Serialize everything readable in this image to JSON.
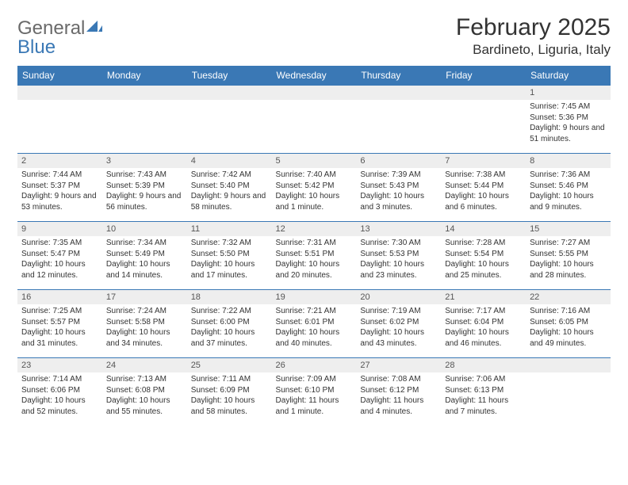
{
  "branding": {
    "word1": "General",
    "word2": "Blue",
    "word1_color": "#6a6a6a",
    "word2_color": "#3a78b5"
  },
  "title": "February 2025",
  "location": "Bardineto, Liguria, Italy",
  "colors": {
    "header_bg": "#3a78b5",
    "header_text": "#ffffff",
    "daynum_bg": "#eeeeee",
    "row_border": "#3a78b5",
    "body_text": "#333333"
  },
  "day_labels": [
    "Sunday",
    "Monday",
    "Tuesday",
    "Wednesday",
    "Thursday",
    "Friday",
    "Saturday"
  ],
  "weeks": [
    [
      {
        "n": "",
        "sr": "",
        "ss": "",
        "dl": ""
      },
      {
        "n": "",
        "sr": "",
        "ss": "",
        "dl": ""
      },
      {
        "n": "",
        "sr": "",
        "ss": "",
        "dl": ""
      },
      {
        "n": "",
        "sr": "",
        "ss": "",
        "dl": ""
      },
      {
        "n": "",
        "sr": "",
        "ss": "",
        "dl": ""
      },
      {
        "n": "",
        "sr": "",
        "ss": "",
        "dl": ""
      },
      {
        "n": "1",
        "sr": "Sunrise: 7:45 AM",
        "ss": "Sunset: 5:36 PM",
        "dl": "Daylight: 9 hours and 51 minutes."
      }
    ],
    [
      {
        "n": "2",
        "sr": "Sunrise: 7:44 AM",
        "ss": "Sunset: 5:37 PM",
        "dl": "Daylight: 9 hours and 53 minutes."
      },
      {
        "n": "3",
        "sr": "Sunrise: 7:43 AM",
        "ss": "Sunset: 5:39 PM",
        "dl": "Daylight: 9 hours and 56 minutes."
      },
      {
        "n": "4",
        "sr": "Sunrise: 7:42 AM",
        "ss": "Sunset: 5:40 PM",
        "dl": "Daylight: 9 hours and 58 minutes."
      },
      {
        "n": "5",
        "sr": "Sunrise: 7:40 AM",
        "ss": "Sunset: 5:42 PM",
        "dl": "Daylight: 10 hours and 1 minute."
      },
      {
        "n": "6",
        "sr": "Sunrise: 7:39 AM",
        "ss": "Sunset: 5:43 PM",
        "dl": "Daylight: 10 hours and 3 minutes."
      },
      {
        "n": "7",
        "sr": "Sunrise: 7:38 AM",
        "ss": "Sunset: 5:44 PM",
        "dl": "Daylight: 10 hours and 6 minutes."
      },
      {
        "n": "8",
        "sr": "Sunrise: 7:36 AM",
        "ss": "Sunset: 5:46 PM",
        "dl": "Daylight: 10 hours and 9 minutes."
      }
    ],
    [
      {
        "n": "9",
        "sr": "Sunrise: 7:35 AM",
        "ss": "Sunset: 5:47 PM",
        "dl": "Daylight: 10 hours and 12 minutes."
      },
      {
        "n": "10",
        "sr": "Sunrise: 7:34 AM",
        "ss": "Sunset: 5:49 PM",
        "dl": "Daylight: 10 hours and 14 minutes."
      },
      {
        "n": "11",
        "sr": "Sunrise: 7:32 AM",
        "ss": "Sunset: 5:50 PM",
        "dl": "Daylight: 10 hours and 17 minutes."
      },
      {
        "n": "12",
        "sr": "Sunrise: 7:31 AM",
        "ss": "Sunset: 5:51 PM",
        "dl": "Daylight: 10 hours and 20 minutes."
      },
      {
        "n": "13",
        "sr": "Sunrise: 7:30 AM",
        "ss": "Sunset: 5:53 PM",
        "dl": "Daylight: 10 hours and 23 minutes."
      },
      {
        "n": "14",
        "sr": "Sunrise: 7:28 AM",
        "ss": "Sunset: 5:54 PM",
        "dl": "Daylight: 10 hours and 25 minutes."
      },
      {
        "n": "15",
        "sr": "Sunrise: 7:27 AM",
        "ss": "Sunset: 5:55 PM",
        "dl": "Daylight: 10 hours and 28 minutes."
      }
    ],
    [
      {
        "n": "16",
        "sr": "Sunrise: 7:25 AM",
        "ss": "Sunset: 5:57 PM",
        "dl": "Daylight: 10 hours and 31 minutes."
      },
      {
        "n": "17",
        "sr": "Sunrise: 7:24 AM",
        "ss": "Sunset: 5:58 PM",
        "dl": "Daylight: 10 hours and 34 minutes."
      },
      {
        "n": "18",
        "sr": "Sunrise: 7:22 AM",
        "ss": "Sunset: 6:00 PM",
        "dl": "Daylight: 10 hours and 37 minutes."
      },
      {
        "n": "19",
        "sr": "Sunrise: 7:21 AM",
        "ss": "Sunset: 6:01 PM",
        "dl": "Daylight: 10 hours and 40 minutes."
      },
      {
        "n": "20",
        "sr": "Sunrise: 7:19 AM",
        "ss": "Sunset: 6:02 PM",
        "dl": "Daylight: 10 hours and 43 minutes."
      },
      {
        "n": "21",
        "sr": "Sunrise: 7:17 AM",
        "ss": "Sunset: 6:04 PM",
        "dl": "Daylight: 10 hours and 46 minutes."
      },
      {
        "n": "22",
        "sr": "Sunrise: 7:16 AM",
        "ss": "Sunset: 6:05 PM",
        "dl": "Daylight: 10 hours and 49 minutes."
      }
    ],
    [
      {
        "n": "23",
        "sr": "Sunrise: 7:14 AM",
        "ss": "Sunset: 6:06 PM",
        "dl": "Daylight: 10 hours and 52 minutes."
      },
      {
        "n": "24",
        "sr": "Sunrise: 7:13 AM",
        "ss": "Sunset: 6:08 PM",
        "dl": "Daylight: 10 hours and 55 minutes."
      },
      {
        "n": "25",
        "sr": "Sunrise: 7:11 AM",
        "ss": "Sunset: 6:09 PM",
        "dl": "Daylight: 10 hours and 58 minutes."
      },
      {
        "n": "26",
        "sr": "Sunrise: 7:09 AM",
        "ss": "Sunset: 6:10 PM",
        "dl": "Daylight: 11 hours and 1 minute."
      },
      {
        "n": "27",
        "sr": "Sunrise: 7:08 AM",
        "ss": "Sunset: 6:12 PM",
        "dl": "Daylight: 11 hours and 4 minutes."
      },
      {
        "n": "28",
        "sr": "Sunrise: 7:06 AM",
        "ss": "Sunset: 6:13 PM",
        "dl": "Daylight: 11 hours and 7 minutes."
      },
      {
        "n": "",
        "sr": "",
        "ss": "",
        "dl": ""
      }
    ]
  ]
}
